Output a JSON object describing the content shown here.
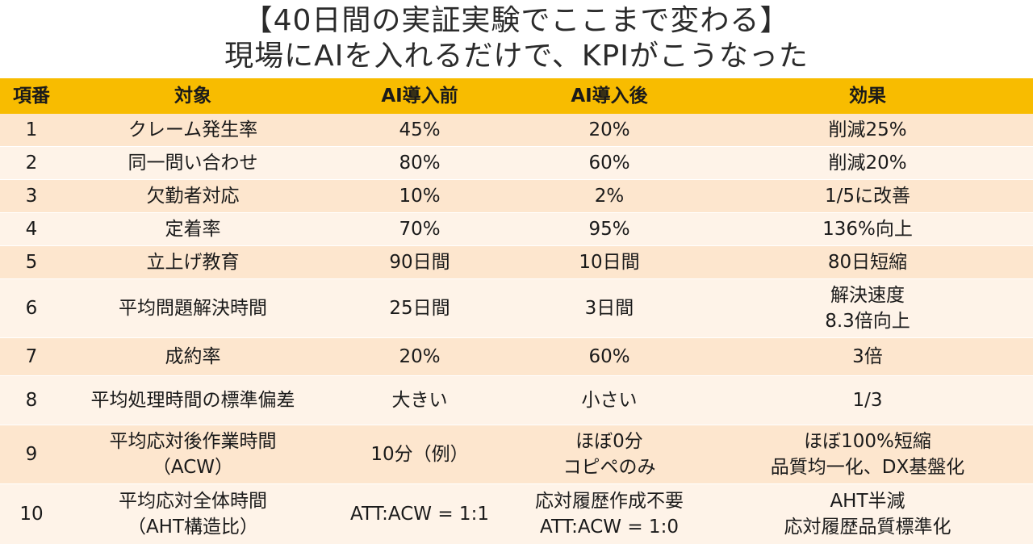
{
  "title": {
    "line1": "【40日間の実証実験でここまで変わる】",
    "line2": "現場にAIを入れるだけで、KPIがこうなった"
  },
  "table": {
    "headers": [
      "項番",
      "対象",
      "AI導入前",
      "AI導入後",
      "効果"
    ],
    "rows": [
      {
        "no": "1",
        "target": [
          "クレーム発生率"
        ],
        "before": [
          "45%"
        ],
        "after": [
          "20%"
        ],
        "effect": [
          "削減25%"
        ]
      },
      {
        "no": "2",
        "target": [
          "同一問い合わせ"
        ],
        "before": [
          "80%"
        ],
        "after": [
          "60%"
        ],
        "effect": [
          "削減20%"
        ]
      },
      {
        "no": "3",
        "target": [
          "欠勤者対応"
        ],
        "before": [
          "10%"
        ],
        "after": [
          "2%"
        ],
        "effect": [
          "1/5に改善"
        ]
      },
      {
        "no": "4",
        "target": [
          "定着率"
        ],
        "before": [
          "70%"
        ],
        "after": [
          "95%"
        ],
        "effect": [
          "136%向上"
        ]
      },
      {
        "no": "5",
        "target": [
          "立上げ教育"
        ],
        "before": [
          "90日間"
        ],
        "after": [
          "10日間"
        ],
        "effect": [
          "80日短縮"
        ]
      },
      {
        "no": "6",
        "target": [
          "平均問題解決時間"
        ],
        "before": [
          "25日間"
        ],
        "after": [
          "3日間"
        ],
        "effect": [
          "解決速度",
          "8.3倍向上"
        ]
      },
      {
        "no": "7",
        "target": [
          "成約率"
        ],
        "before": [
          "20%"
        ],
        "after": [
          "60%"
        ],
        "effect": [
          "3倍"
        ]
      },
      {
        "no": "8",
        "target": [
          "平均処理時間の標準偏差"
        ],
        "before": [
          "大きい"
        ],
        "after": [
          "小さい"
        ],
        "effect": [
          "1/3"
        ]
      },
      {
        "no": "9",
        "target": [
          "平均応対後作業時間",
          "（ACW）"
        ],
        "before": [
          "10分（例）"
        ],
        "after": [
          "ほぼ0分",
          "コピペのみ"
        ],
        "effect": [
          "ほぼ100%短縮",
          "品質均一化、DX基盤化"
        ]
      },
      {
        "no": "10",
        "target": [
          "平均応対全体時間",
          "（AHT構造比）"
        ],
        "before": [
          "ATT:ACW = 1:1"
        ],
        "after": [
          "応対履歴作成不要",
          "ATT:ACW = 1:0"
        ],
        "effect": [
          "AHT半減",
          "応対履歴品質標準化"
        ]
      }
    ]
  },
  "colors": {
    "header_bg": "#f8bc00",
    "row_odd_bg": "#fde6ce",
    "row_even_bg": "#fef3e8"
  }
}
